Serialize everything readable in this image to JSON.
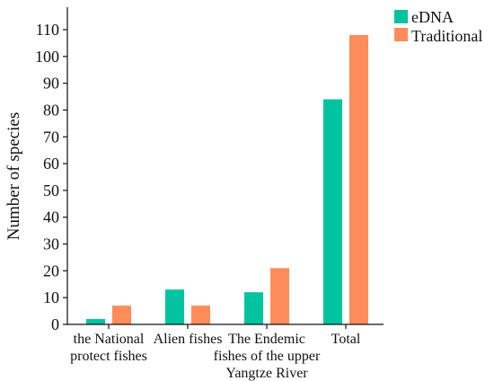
{
  "chart_data": {
    "type": "bar",
    "ylabel": "Number of species",
    "xlabel": "",
    "ylim": [
      0,
      118
    ],
    "yticks": [
      0,
      10,
      20,
      30,
      40,
      50,
      60,
      70,
      80,
      90,
      100,
      110
    ],
    "categories": [
      [
        "the National",
        "protect fishes"
      ],
      [
        "Alien fishes"
      ],
      [
        "The Endemic",
        "fishes of the upper",
        "Yangtze River"
      ],
      [
        "Total"
      ]
    ],
    "series": [
      {
        "name": "eDNA",
        "color": "#00c4a0",
        "values": [
          2,
          13,
          12,
          84
        ]
      },
      {
        "name": "Traditional",
        "color": "#ff8c5a",
        "values": [
          7,
          7,
          21,
          108
        ]
      }
    ],
    "legend_position": "top-right",
    "grid": false
  }
}
